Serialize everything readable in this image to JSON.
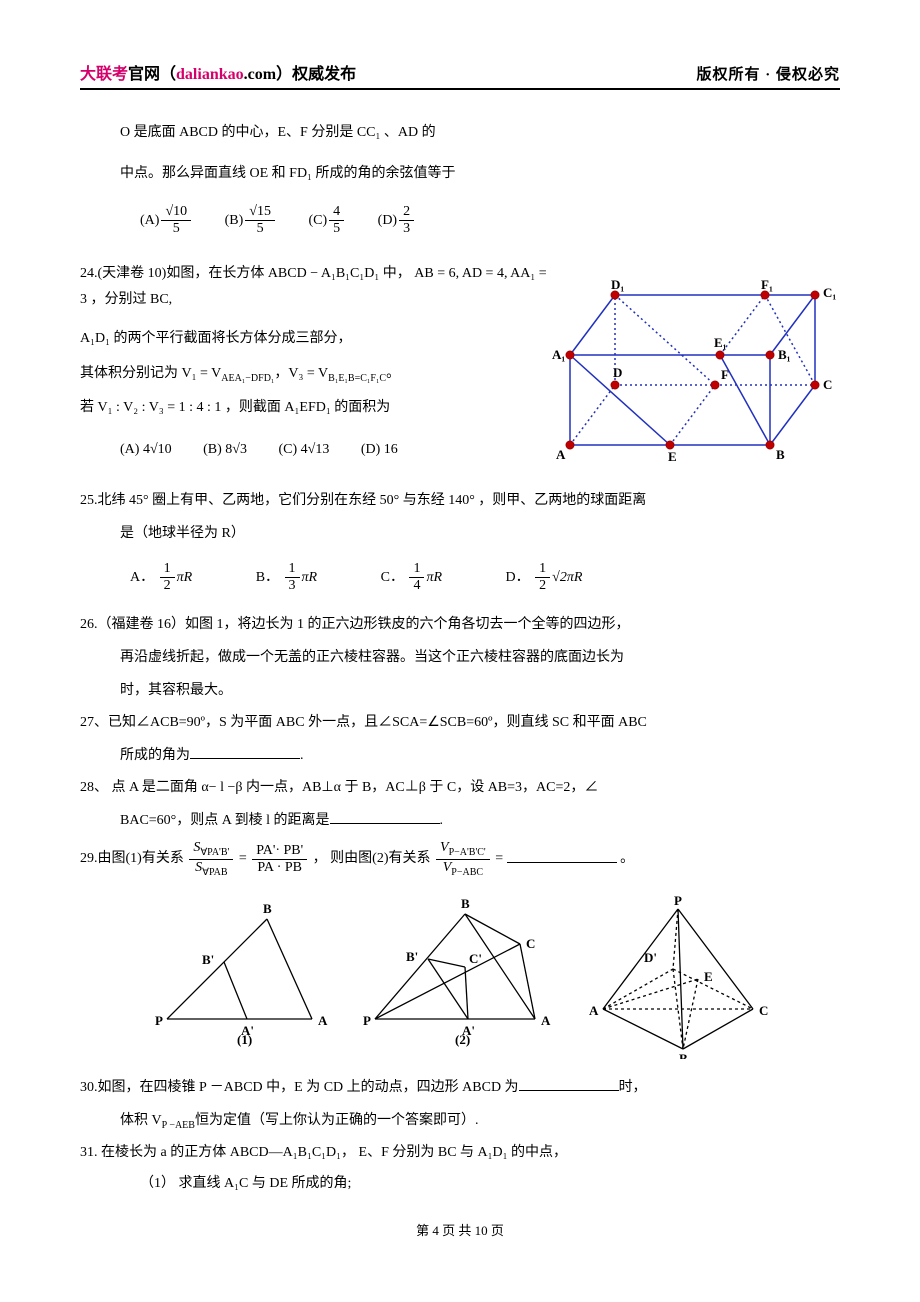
{
  "header": {
    "brand": "大联考",
    "brand_suffix": "官网（",
    "site_colored": "daliankao",
    "site_black": ".com",
    "brand_close": "）权威发布",
    "right": "版权所有 · 侵权必究"
  },
  "q23": {
    "line1": "O 是底面 ABCD 的中心，E、F 分别是 CC₁ 、AD 的",
    "line2": "中点。那么异面直线 OE 和 FD₁ 所成的角的余弦值等于",
    "opts": {
      "a_label": "(A)",
      "a_num": "√10",
      "a_den": "5",
      "b_label": "(B)",
      "b_num": "√15",
      "b_den": "5",
      "c_label": "(C)",
      "c_num": "4",
      "c_den": "5",
      "d_label": "(D)",
      "d_num": "2",
      "d_den": "3"
    }
  },
  "q24": {
    "stem": "24.(天津卷 10)如图，在长方体 ABCD − A₁B₁C₁D₁ 中，  AB = 6, AD = 4, AA₁ = 3 ，分别过 BC,",
    "line2": "A₁D₁ 的两个平行截面将长方体分成三部分，",
    "line3a": "其体积分别记为 V₁ = V",
    "line3a_sub": "AEA₁−DFD₁",
    "line3b": "，V₃ = V",
    "line3b_sub": "B₁E₁B=C₁F₁C",
    "line3c": "。",
    "line4": "若 V₁ : V₂ : V₃ = 1 : 4 : 1 ，则截面 A₁EFD₁ 的面积为",
    "opts": {
      "a_label": "(A)",
      "a": "4√10",
      "b_label": "(B)",
      "b": "8√3",
      "c_label": "(C)",
      "c": "4√13",
      "d_label": "(D)",
      "d": "16"
    },
    "diagram": {
      "D1": "D₁",
      "F1": "F₁",
      "C1": "C₁",
      "A1": "A₁",
      "E1": "E₁",
      "B1": "B₁",
      "D": "D",
      "F": "F",
      "C": "C",
      "A": "A",
      "E": "E",
      "B": "B",
      "stroke": "#2030c0",
      "dot_stroke": "#a00000",
      "dot_fill": "#c00000"
    }
  },
  "q25": {
    "stem": "25.北纬 45° 圈上有甲、乙两地，它们分别在东经 50° 与东经 140° ，则甲、乙两地的球面距离",
    "line2": "是（地球半径为 R）",
    "a_label": "A．",
    "b_label": "B．",
    "c_label": "C．",
    "d_label": "D．",
    "a_num": "1",
    "a_den": "2",
    "a_suf": "πR",
    "b_num": "1",
    "b_den": "3",
    "b_suf": "πR",
    "c_num": "1",
    "c_den": "4",
    "c_suf": "πR",
    "d_num": "1",
    "d_den": "2",
    "d_suf": "√2πR"
  },
  "q26": {
    "line1": "26.（福建卷 16）如图 1，将边长为 1 的正六边形铁皮的六个角各切去一个全等的四边形，",
    "line2": "再沿虚线折起，做成一个无盖的正六棱柱容器。当这个正六棱柱容器的底面边长为",
    "line3": "时，其容积最大。"
  },
  "q27": {
    "line1": "27、已知∠ACB=90º，S 为平面 ABC 外一点，且∠SCA=∠SCB=60º，则直线 SC 和平面 ABC",
    "line2pre": "所成的角为",
    "line2suf": "."
  },
  "q28": {
    "line1": "28、 点 A 是二面角 α− l −β 内一点，AB⊥α 于 B，AC⊥β 于 C，设 AB=3，AC=2，∠",
    "line2pre": "BAC=60°，则点 A 到棱 l 的距离是",
    "line2suf": "."
  },
  "q29": {
    "pre": "29.由图(1)有关系 ",
    "lhs_num": "S",
    "lhs_num_sub": "∀PA'B'",
    "lhs_den": "S",
    "lhs_den_sub": "∀PAB",
    "eq": " = ",
    "rhs_num": "PA'· PB'",
    "rhs_den": "PA · PB",
    "mid": "，  则由图(2)有关系 ",
    "r2_num": "V",
    "r2_num_sub": "P−A'B'C'",
    "r2_den": "V",
    "r2_den_sub": "P−ABC",
    "eq2": " = ",
    "suf": "。"
  },
  "tri": {
    "labels1": {
      "B": "B",
      "Bp": "B'",
      "P": "P",
      "Ap": "A'",
      "A": "A",
      "cap": "(1)"
    },
    "labels2": {
      "B": "B",
      "C": "C",
      "Bp": "B'",
      "Cp": "C'",
      "P": "P",
      "Ap": "A'",
      "A": "A",
      "cap": "(2)"
    },
    "labels3": {
      "P": "P",
      "Dp": "D'",
      "E": "E",
      "A": "A",
      "C": "C",
      "B": "B"
    }
  },
  "q30": {
    "pre": "30.如图，在四棱锥 P －ABCD 中，E 为 CD 上的动点，四边形 ABCD 为",
    "suf": "时，",
    "line2": "体积 V",
    "line2sub": "P −AEB",
    "line2b": "恒为定值（写上你认为正确的一个答案即可）."
  },
  "q31": {
    "line1": "31. 在棱长为 a 的正方体 ABCD—A₁B₁C₁D₁，  E、F 分别为 BC 与 A₁D₁ 的中点，",
    "sub1": "（1）   求直线 A₁C 与 DE 所成的角;"
  },
  "footer": {
    "page": "第 4 页 共 10 页"
  }
}
